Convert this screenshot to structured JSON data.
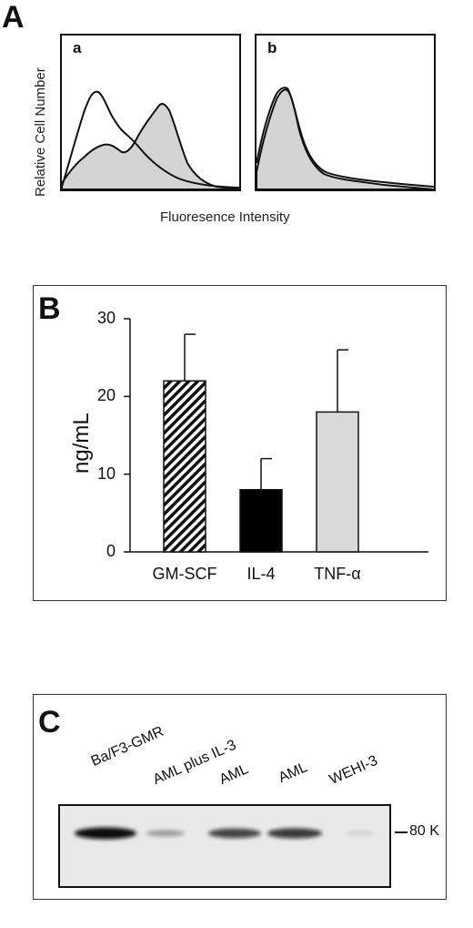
{
  "panel_a": {
    "letter": "A",
    "sub_a": "a",
    "sub_b": "b",
    "ylabel": "Relative Cell Number",
    "xlabel": "Fluoresence Intensity"
  },
  "panel_b": {
    "letter": "B"
  },
  "panel_c": {
    "letter": "C",
    "lanes": [
      "Ba/F3-GMR",
      "AML plus IL-3",
      "AML",
      "AML",
      "WEHI-3"
    ],
    "marker": "80 K",
    "band_intensity": [
      1.0,
      0.35,
      0.75,
      0.8,
      0.08
    ]
  },
  "chart_data": {
    "type": "bar",
    "categories": [
      "GM-SCF",
      "IL-4",
      "TNF-α"
    ],
    "values": [
      22,
      8,
      18
    ],
    "errors": [
      6,
      4,
      8
    ],
    "ylabel": "ng/mL",
    "ylim": [
      0,
      30
    ],
    "yticks": [
      0,
      10,
      20,
      30
    ],
    "bar_fills": [
      "hatched",
      "#000000",
      "#d9d9d9"
    ]
  }
}
